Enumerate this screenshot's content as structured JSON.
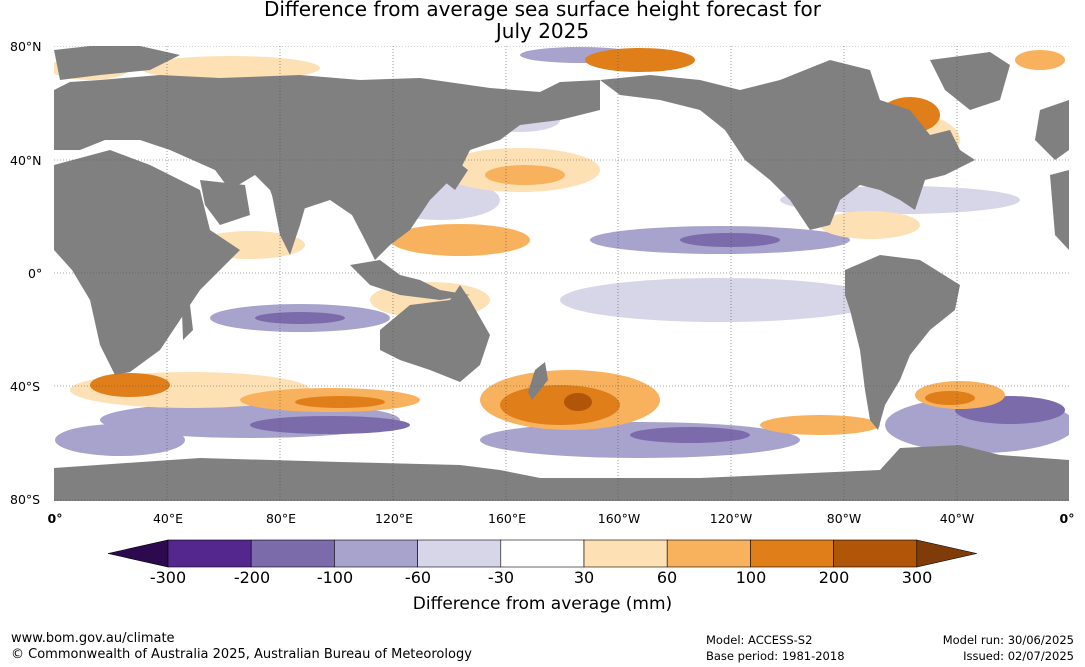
{
  "title_line1": "Difference from average sea surface height forecast for",
  "title_line2": "July 2025",
  "map_data": {
    "projection": "equirectangular",
    "lon_range": [
      0,
      360
    ],
    "lat_range": [
      -80,
      80
    ],
    "grid": true,
    "land_color": "#808080",
    "lat_labels": [
      "80°N",
      "40°N",
      "0°",
      "40°S",
      "80°S"
    ],
    "lon_labels": [
      "0°",
      "40°E",
      "80°E",
      "120°E",
      "160°E",
      "160°W",
      "120°W",
      "80°W",
      "40°W",
      "0°"
    ]
  },
  "colorbar": {
    "title": "Difference from average (mm)",
    "tick_labels": [
      "-300",
      "-200",
      "-100",
      "-60",
      "-30",
      "30",
      "60",
      "100",
      "200",
      "300"
    ],
    "colors": [
      "#2d0a4e",
      "#54278f",
      "#7b6bab",
      "#a8a3cc",
      "#d6d6e8",
      "#ffffff",
      "#fde0b4",
      "#f8b25e",
      "#e07f19",
      "#b15508",
      "#7f3b08"
    ]
  },
  "footer": {
    "url": "www.bom.gov.au/climate",
    "copyright": "© Commonwealth of Australia 2025, Australian Bureau of Meteorology",
    "model": "Model: ACCESS-S2",
    "base_period": "Base period: 1981-2018",
    "model_run": "Model run: 30/06/2025",
    "issued": "Issued: 02/07/2025"
  }
}
